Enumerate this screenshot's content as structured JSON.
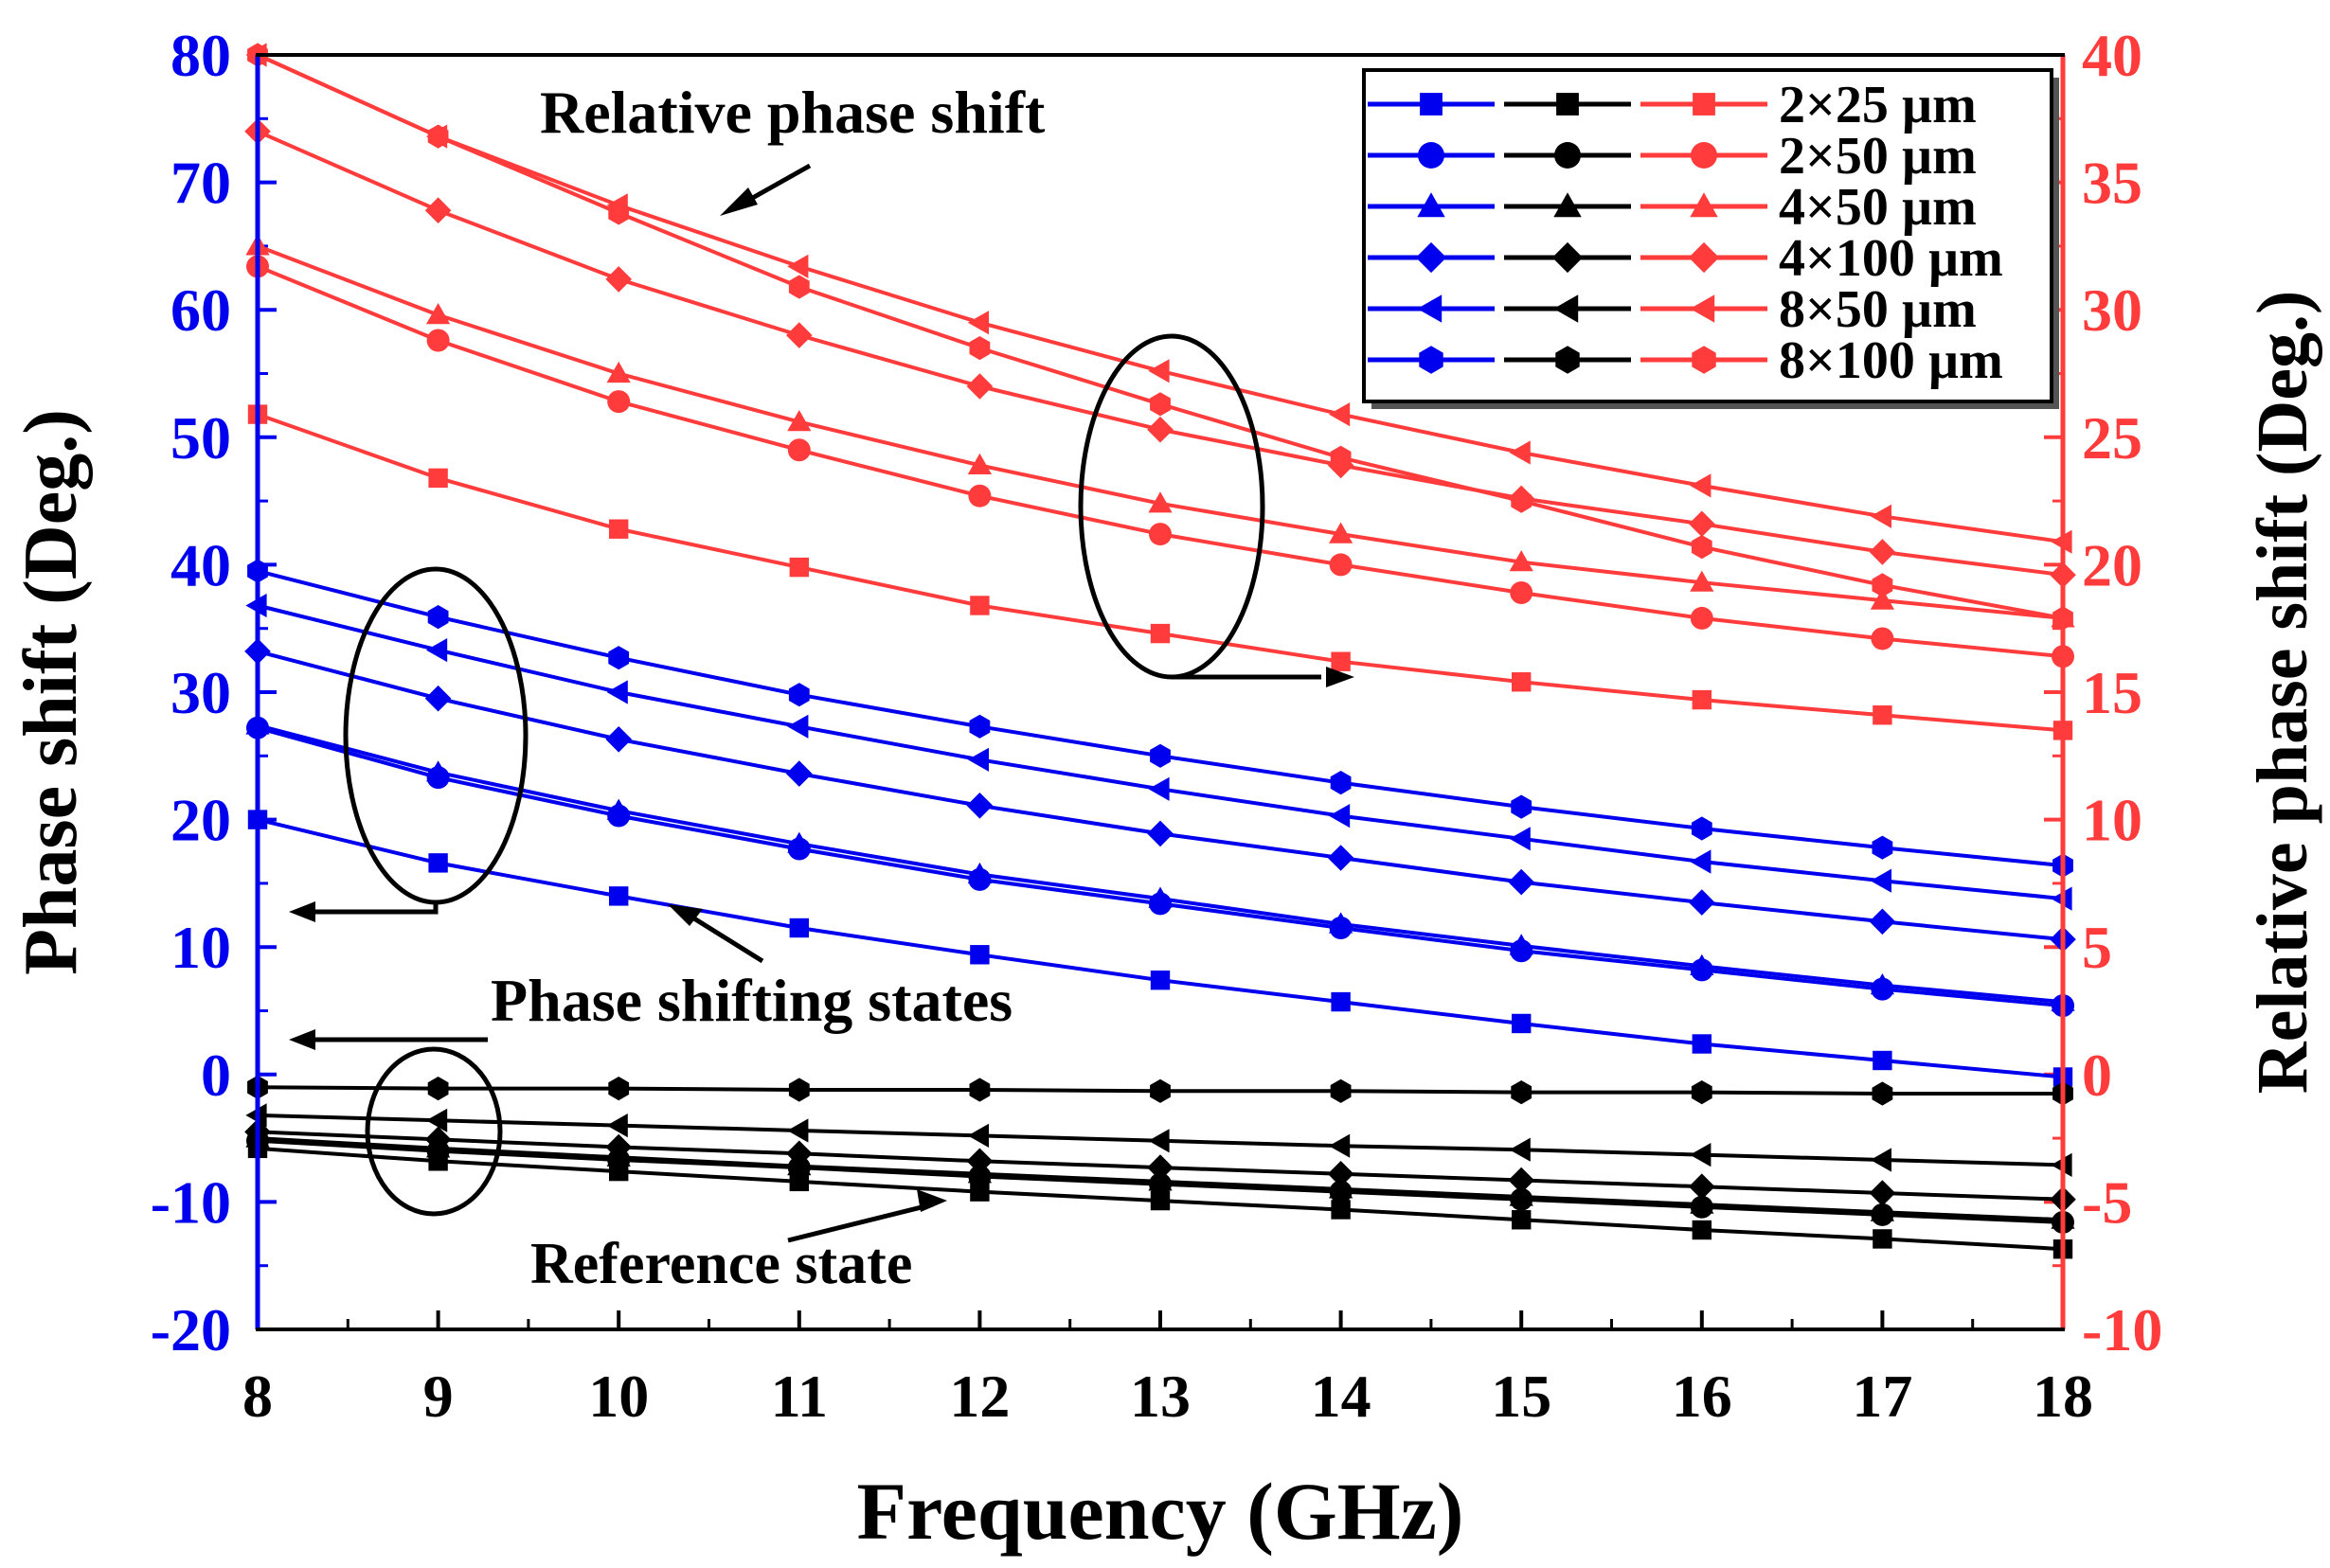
{
  "colors": {
    "phase": "#0000ee",
    "reference": "#000000",
    "relative": "#ff3b3b"
  },
  "chart_data": {
    "type": "line",
    "xlabel": "Frequency (GHz)",
    "ylabel": "Phase shift (Deg.)",
    "y2label": "Relative phase shift (Deg.)",
    "xlim": [
      8,
      18
    ],
    "ylim": [
      -20,
      80
    ],
    "y2lim": [
      -10,
      40
    ],
    "x": [
      8,
      9,
      10,
      11,
      12,
      13,
      14,
      15,
      16,
      17,
      18
    ],
    "xticks": [
      "8",
      "9",
      "10",
      "11",
      "12",
      "13",
      "14",
      "15",
      "16",
      "17",
      "18"
    ],
    "yticks": [
      "-20",
      "-10",
      "0",
      "10",
      "20",
      "30",
      "40",
      "50",
      "60",
      "70",
      "80"
    ],
    "y2ticks": [
      "-10",
      "-5",
      "0",
      "5",
      "10",
      "15",
      "20",
      "25",
      "30",
      "35",
      "40"
    ],
    "legend": {
      "position": "top-right",
      "entries": [
        "2×25 µm",
        "2×50 µm",
        "4×50 µm",
        "4×100 µm",
        "8×50 µm",
        "8×100 µm"
      ],
      "markers": [
        "square",
        "circle",
        "triangle",
        "diamond",
        "left-triangle",
        "hexagon"
      ]
    },
    "annotations": [
      "Relative phase shift",
      "Phase shifting states",
      "Reference state"
    ],
    "series": [
      {
        "group": "phase",
        "axis": "left",
        "name": "2×25 µm",
        "marker": "square",
        "values": [
          20,
          16.6,
          14,
          11.5,
          9.4,
          7.4,
          5.7,
          4,
          2.4,
          1.1,
          -0.2
        ]
      },
      {
        "group": "phase",
        "axis": "left",
        "name": "2×50 µm",
        "marker": "circle",
        "values": [
          27.2,
          23.3,
          20.3,
          17.7,
          15.3,
          13.4,
          11.5,
          9.7,
          8.2,
          6.7,
          5.4
        ]
      },
      {
        "group": "phase",
        "axis": "left",
        "name": "4×50 µm",
        "marker": "triangle",
        "values": [
          27.4,
          23.7,
          20.7,
          18.1,
          15.7,
          13.8,
          11.8,
          10.1,
          8.5,
          7,
          5.7
        ]
      },
      {
        "group": "phase",
        "axis": "left",
        "name": "4×100 µm",
        "marker": "diamond",
        "values": [
          33.2,
          29.5,
          26.3,
          23.6,
          21.1,
          18.9,
          17,
          15.1,
          13.5,
          12,
          10.6
        ]
      },
      {
        "group": "phase",
        "axis": "left",
        "name": "8×50 µm",
        "marker": "left-triangle",
        "values": [
          36.8,
          33.3,
          30,
          27.3,
          24.7,
          22.4,
          20.3,
          18.5,
          16.7,
          15.2,
          13.8
        ]
      },
      {
        "group": "phase",
        "axis": "left",
        "name": "8×100 µm",
        "marker": "hexagon",
        "values": [
          39.5,
          35.9,
          32.7,
          29.8,
          27.3,
          25,
          22.9,
          21,
          19.3,
          17.8,
          16.4
        ]
      },
      {
        "group": "reference",
        "axis": "left",
        "name": "2×25 µm",
        "marker": "square",
        "values": [
          -5.8,
          -6.8,
          -7.6,
          -8.4,
          -9.2,
          -9.9,
          -10.6,
          -11.4,
          -12.2,
          -12.9,
          -13.7
        ]
      },
      {
        "group": "reference",
        "axis": "left",
        "name": "2×50 µm",
        "marker": "circle",
        "values": [
          -5.2,
          -6,
          -6.7,
          -7.3,
          -8,
          -8.6,
          -9.2,
          -9.8,
          -10.4,
          -11,
          -11.6
        ]
      },
      {
        "group": "reference",
        "axis": "left",
        "name": "4×50 µm",
        "marker": "triangle",
        "values": [
          -5,
          -5.8,
          -6.5,
          -7.2,
          -7.8,
          -8.4,
          -9,
          -9.6,
          -10.2,
          -10.8,
          -11.4
        ]
      },
      {
        "group": "reference",
        "axis": "left",
        "name": "4×100 µm",
        "marker": "diamond",
        "values": [
          -4.5,
          -5.1,
          -5.7,
          -6.2,
          -6.8,
          -7.3,
          -7.8,
          -8.3,
          -8.8,
          -9.3,
          -9.8
        ]
      },
      {
        "group": "reference",
        "axis": "left",
        "name": "8×50 µm",
        "marker": "left-triangle",
        "values": [
          -3.2,
          -3.6,
          -4,
          -4.4,
          -4.8,
          -5.2,
          -5.6,
          -5.9,
          -6.3,
          -6.7,
          -7.1
        ]
      },
      {
        "group": "reference",
        "axis": "left",
        "name": "8×100 µm",
        "marker": "hexagon",
        "values": [
          -1,
          -1.1,
          -1.1,
          -1.2,
          -1.2,
          -1.3,
          -1.3,
          -1.4,
          -1.4,
          -1.5,
          -1.5
        ]
      },
      {
        "group": "relative",
        "axis": "right",
        "name": "2×25 µm",
        "marker": "square",
        "values": [
          25.9,
          23.4,
          21.4,
          19.9,
          18.4,
          17.3,
          16.2,
          15.4,
          14.7,
          14.1,
          13.5
        ]
      },
      {
        "group": "relative",
        "axis": "right",
        "name": "2×50 µm",
        "marker": "circle",
        "values": [
          31.7,
          28.8,
          26.4,
          24.5,
          22.7,
          21.2,
          20,
          18.9,
          17.9,
          17.1,
          16.4
        ]
      },
      {
        "group": "relative",
        "axis": "right",
        "name": "4×50 µm",
        "marker": "triangle",
        "values": [
          32.5,
          29.8,
          27.5,
          25.6,
          23.9,
          22.4,
          21.2,
          20.1,
          19.3,
          18.6,
          17.9
        ]
      },
      {
        "group": "relative",
        "axis": "right",
        "name": "4×100 µm",
        "marker": "diamond",
        "values": [
          37,
          33.9,
          31.2,
          29,
          27,
          25.3,
          23.9,
          22.6,
          21.6,
          20.5,
          19.6
        ]
      },
      {
        "group": "relative",
        "axis": "right",
        "name": "8×50 µm",
        "marker": "left-triangle",
        "values": [
          40,
          36.8,
          34.1,
          31.7,
          29.5,
          27.6,
          25.9,
          24.4,
          23.1,
          21.9,
          20.9
        ]
      },
      {
        "group": "relative",
        "axis": "right",
        "name": "8×100 µm",
        "marker": "hexagon",
        "values": [
          40,
          36.8,
          33.8,
          30.9,
          28.5,
          26.3,
          24.2,
          22.5,
          20.7,
          19.2,
          17.9
        ]
      }
    ]
  }
}
